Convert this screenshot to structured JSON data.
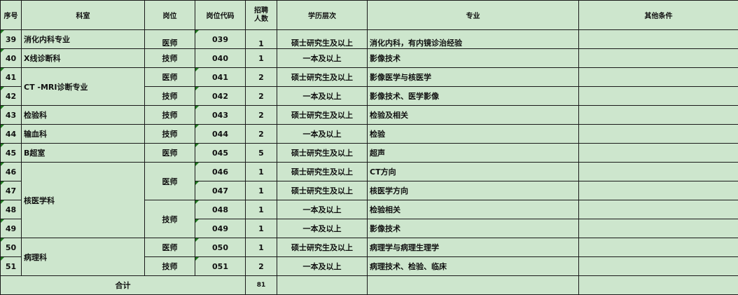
{
  "headers": {
    "no": "序号",
    "dept": "科室",
    "post": "岗位",
    "code": "岗位代码",
    "count": "招聘人数",
    "edu": "学历层次",
    "major": "专业",
    "other": "其他条件"
  },
  "rows": [
    {
      "no": "39",
      "dept": "消化内科专业",
      "post": "医师",
      "code": "039",
      "count": "1",
      "edu": "硕士研究生及以上",
      "major": "消化内科，有内镜诊治经验",
      "other": ""
    },
    {
      "no": "40",
      "dept": "X线诊断科",
      "post": "技师",
      "code": "040",
      "count": "1",
      "edu": "一本及以上",
      "major": "影像技术",
      "other": ""
    },
    {
      "no": "41",
      "dept": "CT -MRI诊断专业",
      "post": "医师",
      "code": "041",
      "count": "2",
      "edu": "硕士研究生及以上",
      "major": "影像医学与核医学",
      "other": ""
    },
    {
      "no": "42",
      "dept": "CT -MRI诊断专业",
      "post": "技师",
      "code": "042",
      "count": "2",
      "edu": "一本及以上",
      "major": "影像技术、医学影像",
      "other": ""
    },
    {
      "no": "43",
      "dept": "检验科",
      "post": "技师",
      "code": "043",
      "count": "2",
      "edu": "硕士研究生及以上",
      "major": "检验及相关",
      "other": ""
    },
    {
      "no": "44",
      "dept": "输血科",
      "post": "技师",
      "code": "044",
      "count": "2",
      "edu": "一本及以上",
      "major": "检验",
      "other": ""
    },
    {
      "no": "45",
      "dept": "B超室",
      "post": "医师",
      "code": "045",
      "count": "5",
      "edu": "硕士研究生及以上",
      "major": "超声",
      "other": ""
    },
    {
      "no": "46",
      "dept": "核医学科",
      "post": "医师",
      "code": "046",
      "count": "1",
      "edu": "硕士研究生及以上",
      "major": "CT方向",
      "other": ""
    },
    {
      "no": "47",
      "dept": "核医学科",
      "post": "医师",
      "code": "047",
      "count": "1",
      "edu": "硕士研究生及以上",
      "major": "核医学方向",
      "other": ""
    },
    {
      "no": "48",
      "dept": "核医学科",
      "post": "技师",
      "code": "048",
      "count": "1",
      "edu": "一本及以上",
      "major": "检验相关",
      "other": ""
    },
    {
      "no": "49",
      "dept": "核医学科",
      "post": "技师",
      "code": "049",
      "count": "1",
      "edu": "一本及以上",
      "major": "影像技术",
      "other": ""
    },
    {
      "no": "50",
      "dept": "病理科",
      "post": "医师",
      "code": "050",
      "count": "1",
      "edu": "硕士研究生及以上",
      "major": "病理学与病理生理学",
      "other": ""
    },
    {
      "no": "51",
      "dept": "病理科",
      "post": "技师",
      "code": "051",
      "count": "2",
      "edu": "一本及以上",
      "major": "病理技术、检验、临床",
      "other": ""
    }
  ],
  "total": {
    "label": "合计",
    "count": "81"
  }
}
